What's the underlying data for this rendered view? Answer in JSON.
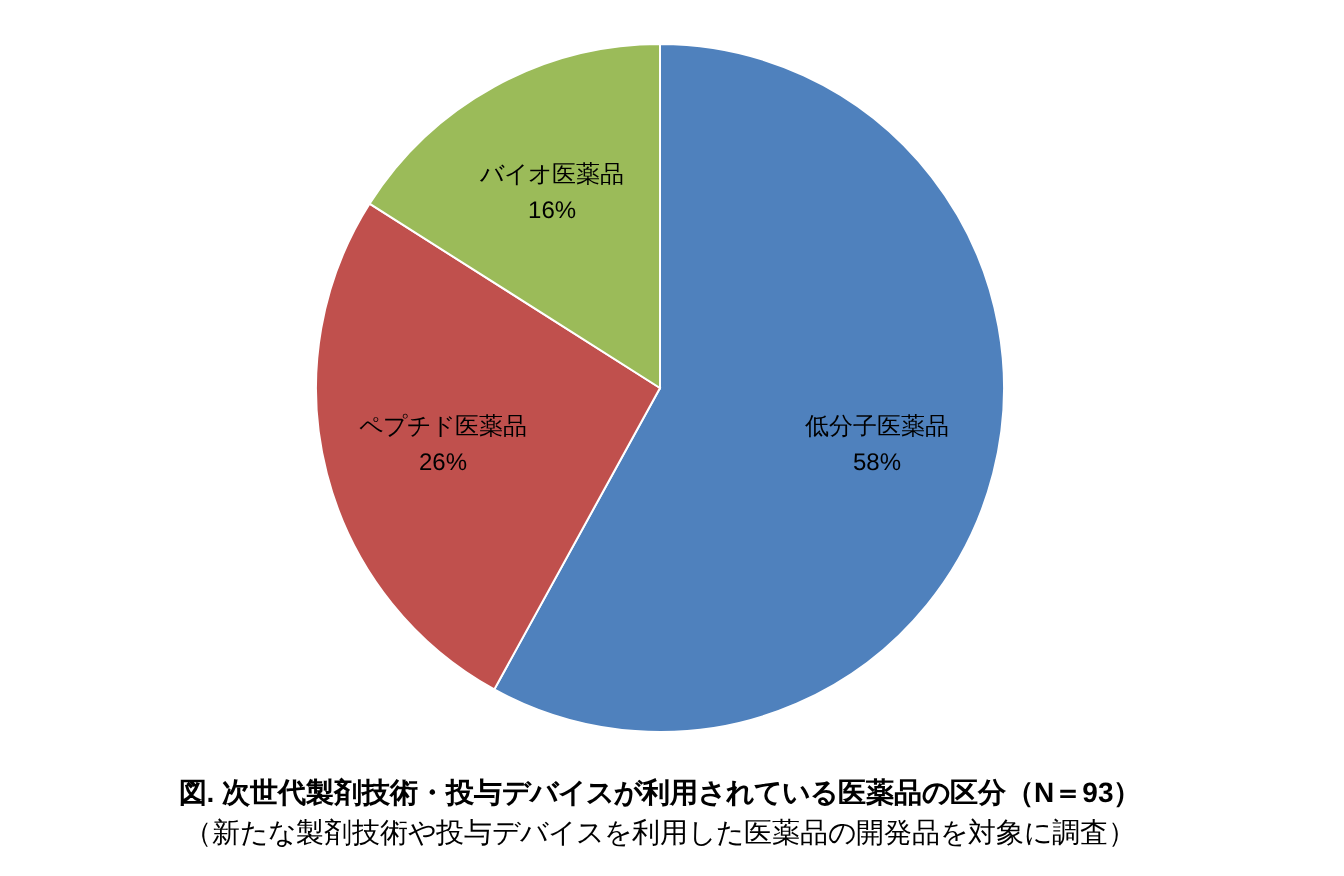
{
  "chart_data": {
    "type": "pie",
    "title": "図. 次世代製剤技術・投与デバイスが利用されている医薬品の区分（N＝93）",
    "subtitle": "（新たな製剤技術や投与デバイスを利用した医薬品の開発品を対象に調査）",
    "categories": [
      "低分子医薬品",
      "ペプチド医薬品",
      "バイオ医薬品"
    ],
    "values": [
      58,
      26,
      16
    ],
    "value_labels": [
      "58%",
      "26%",
      "16%"
    ],
    "colors": [
      "#4f81bd",
      "#c0504d",
      "#9bbb59"
    ]
  }
}
